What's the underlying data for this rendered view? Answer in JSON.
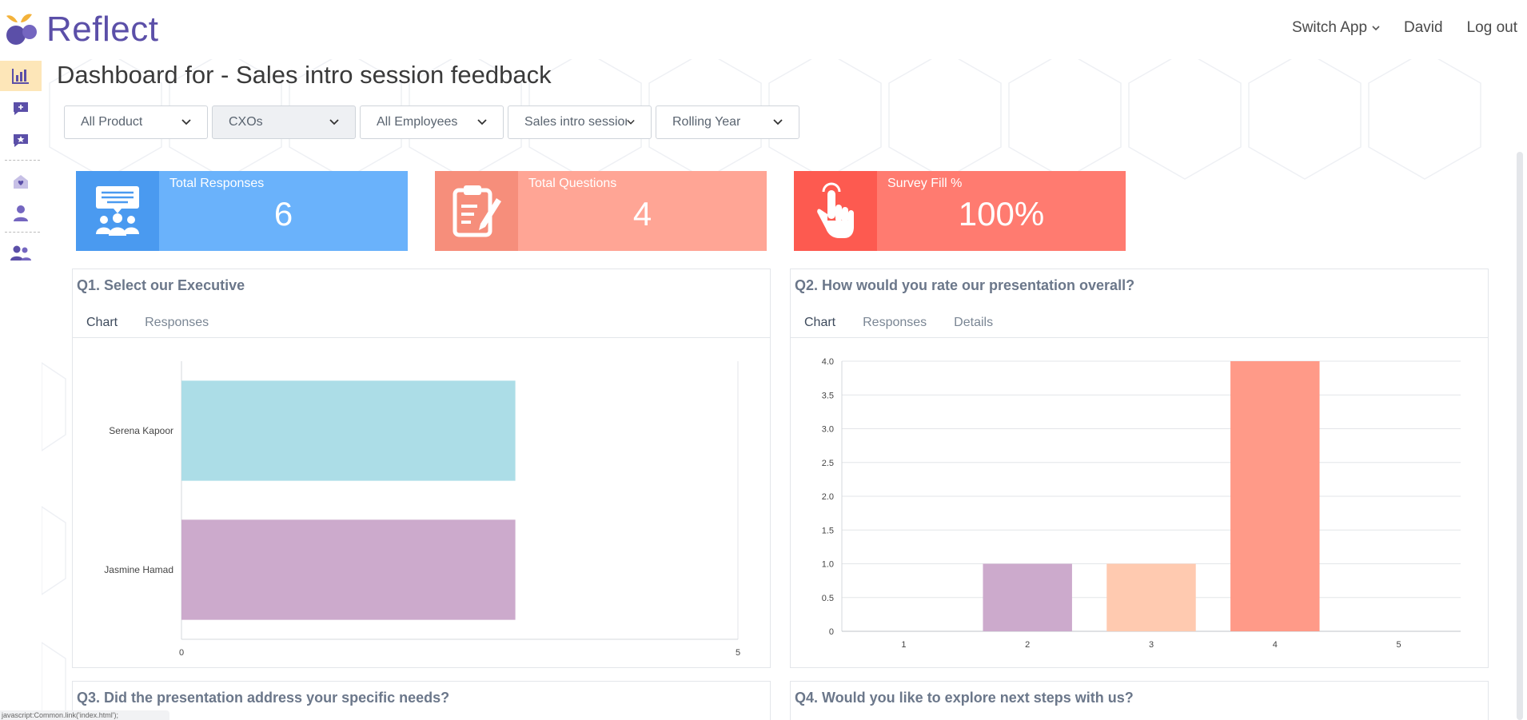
{
  "app": {
    "brand": "Reflect"
  },
  "top_nav": {
    "switch_app": "Switch App",
    "user": "David",
    "logout": "Log out"
  },
  "page": {
    "title": "Dashboard for - Sales intro session feedback"
  },
  "filters": [
    {
      "value": "All Product"
    },
    {
      "value": "CXOs"
    },
    {
      "value": "All Employees"
    },
    {
      "value": "Sales intro session feedback"
    },
    {
      "value": "Rolling Year"
    }
  ],
  "stats": [
    {
      "label": "Total Responses",
      "value": "6",
      "icon": "audience-icon",
      "color_dark": "#4a9af0",
      "color_light": "#6ab2fb"
    },
    {
      "label": "Total Questions",
      "value": "4",
      "icon": "clipboard-icon",
      "color_dark": "#f68e7b",
      "color_light": "#ffa595"
    },
    {
      "label": "Survey Fill %",
      "value": "100%",
      "icon": "hand-pointer-icon",
      "color_dark": "#fd5a50",
      "color_light": "#ff7b70"
    }
  ],
  "panels": {
    "q1": {
      "title": "Q1. Select our Executive",
      "tabs": [
        "Chart",
        "Responses"
      ]
    },
    "q2": {
      "title": "Q2. How would you rate our presentation overall?",
      "tabs": [
        "Chart",
        "Responses",
        "Details"
      ]
    },
    "q3": {
      "title": "Q3. Did the presentation address your specific needs?"
    },
    "q4": {
      "title": "Q4. Would you like to explore next steps with us?"
    }
  },
  "status_bar": {
    "text": "javascript:Common.link('index.html');"
  },
  "chart_data": [
    {
      "type": "bar",
      "orientation": "horizontal",
      "categories": [
        "Serena Kapoor",
        "Jasmine Hamad"
      ],
      "values": [
        3,
        3
      ],
      "colors": [
        "#acdde7",
        "#ccaacc"
      ],
      "xlim": [
        0,
        5
      ],
      "x_ticks": [
        "0",
        "5"
      ],
      "grid": false
    },
    {
      "type": "bar",
      "categories": [
        "1",
        "2",
        "3",
        "4",
        "5"
      ],
      "values": [
        0,
        1,
        1,
        4,
        0
      ],
      "colors": [
        "#a7d6e5",
        "#ccaacc",
        "#ffcab0",
        "#ff9a88",
        "#ffd6cc"
      ],
      "ylim": [
        0,
        4
      ],
      "y_ticks": [
        "0",
        "0.5",
        "1.0",
        "1.5",
        "2.0",
        "2.5",
        "3.0",
        "3.5",
        "4.0"
      ],
      "grid": true
    }
  ]
}
